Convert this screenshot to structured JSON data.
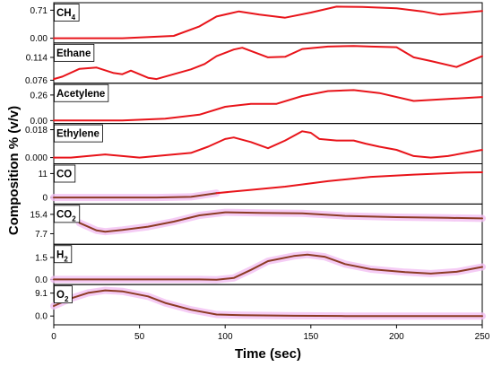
{
  "figure": {
    "ylabel": "Composition % (v/v)",
    "xlabel": "Time (sec)",
    "x_ticks": [
      "0",
      "50",
      "100",
      "150",
      "200",
      "250"
    ]
  },
  "chart_data": {
    "type": "line",
    "xlim": [
      0,
      250
    ],
    "colors": {
      "fresh": "#e8141a",
      "reacted": "#8c3b24",
      "band": "#f2bff2"
    },
    "panels": [
      {
        "id": "ch4",
        "label": "CH",
        "subscript": "4",
        "yticks": [
          "0.71",
          "0.00"
        ],
        "ylim": [
          -0.12,
          0.9
        ],
        "series": [
          {
            "color": "fresh",
            "points": [
              [
                0,
                0.0
              ],
              [
                40,
                0.0
              ],
              [
                70,
                0.06
              ],
              [
                85,
                0.3
              ],
              [
                95,
                0.55
              ],
              [
                108,
                0.68
              ],
              [
                120,
                0.6
              ],
              [
                135,
                0.52
              ],
              [
                150,
                0.65
              ],
              [
                165,
                0.8
              ],
              [
                180,
                0.79
              ],
              [
                200,
                0.76
              ],
              [
                215,
                0.68
              ],
              [
                225,
                0.6
              ],
              [
                240,
                0.65
              ],
              [
                250,
                0.69
              ]
            ]
          }
        ]
      },
      {
        "id": "ethane",
        "label": "Ethane",
        "subscript": "",
        "yticks": [
          "0.114",
          "0.076"
        ],
        "ylim": [
          0.071,
          0.138
        ],
        "series": [
          {
            "color": "fresh",
            "points": [
              [
                0,
                0.078
              ],
              [
                5,
                0.082
              ],
              [
                15,
                0.095
              ],
              [
                25,
                0.097
              ],
              [
                35,
                0.088
              ],
              [
                40,
                0.086
              ],
              [
                45,
                0.092
              ],
              [
                55,
                0.08
              ],
              [
                60,
                0.078
              ],
              [
                70,
                0.086
              ],
              [
                80,
                0.094
              ],
              [
                88,
                0.103
              ],
              [
                95,
                0.116
              ],
              [
                105,
                0.127
              ],
              [
                110,
                0.13
              ],
              [
                125,
                0.114
              ],
              [
                135,
                0.115
              ],
              [
                145,
                0.128
              ],
              [
                160,
                0.132
              ],
              [
                175,
                0.133
              ],
              [
                185,
                0.132
              ],
              [
                200,
                0.131
              ],
              [
                210,
                0.114
              ],
              [
                220,
                0.108
              ],
              [
                235,
                0.098
              ],
              [
                245,
                0.11
              ],
              [
                250,
                0.116
              ]
            ]
          }
        ]
      },
      {
        "id": "acetylene",
        "label": "Acetylene",
        "subscript": "",
        "yticks": [
          "0.26",
          "0.00"
        ],
        "ylim": [
          -0.03,
          0.38
        ],
        "series": [
          {
            "color": "fresh",
            "points": [
              [
                0,
                0.0
              ],
              [
                40,
                0.0
              ],
              [
                65,
                0.02
              ],
              [
                85,
                0.06
              ],
              [
                100,
                0.14
              ],
              [
                115,
                0.17
              ],
              [
                130,
                0.17
              ],
              [
                145,
                0.25
              ],
              [
                160,
                0.3
              ],
              [
                175,
                0.31
              ],
              [
                190,
                0.28
              ],
              [
                210,
                0.2
              ],
              [
                230,
                0.22
              ],
              [
                250,
                0.24
              ]
            ]
          }
        ]
      },
      {
        "id": "ethylene",
        "label": "Ethylene",
        "subscript": "",
        "yticks": [
          "0.018",
          "0.000"
        ],
        "ylim": [
          -0.004,
          0.022
        ],
        "series": [
          {
            "color": "fresh",
            "points": [
              [
                0,
                0.0
              ],
              [
                10,
                0.0
              ],
              [
                20,
                0.001
              ],
              [
                30,
                0.002
              ],
              [
                40,
                0.001
              ],
              [
                50,
                0.0
              ],
              [
                60,
                0.001
              ],
              [
                70,
                0.002
              ],
              [
                80,
                0.003
              ],
              [
                90,
                0.007
              ],
              [
                100,
                0.012
              ],
              [
                105,
                0.013
              ],
              [
                115,
                0.01
              ],
              [
                125,
                0.006
              ],
              [
                135,
                0.011
              ],
              [
                145,
                0.017
              ],
              [
                150,
                0.016
              ],
              [
                155,
                0.012
              ],
              [
                165,
                0.011
              ],
              [
                175,
                0.011
              ],
              [
                182,
                0.009
              ],
              [
                190,
                0.007
              ],
              [
                200,
                0.005
              ],
              [
                210,
                0.001
              ],
              [
                220,
                0.0
              ],
              [
                230,
                0.001
              ],
              [
                240,
                0.003
              ],
              [
                250,
                0.005
              ]
            ]
          }
        ]
      },
      {
        "id": "co",
        "label": "CO",
        "subscript": "",
        "yticks": [
          "11",
          "0"
        ],
        "ylim": [
          -3,
          15.5
        ],
        "series": [
          {
            "color": "reacted",
            "band": true,
            "points": [
              [
                0,
                0.0
              ],
              [
                40,
                0.0
              ],
              [
                60,
                0.0
              ],
              [
                80,
                0.3
              ],
              [
                95,
                2.0
              ]
            ]
          },
          {
            "color": "fresh",
            "points": [
              [
                95,
                2.0
              ],
              [
                115,
                3.5
              ],
              [
                135,
                5.0
              ],
              [
                160,
                7.5
              ],
              [
                185,
                9.5
              ],
              [
                210,
                10.5
              ],
              [
                240,
                11.5
              ],
              [
                250,
                11.6
              ]
            ]
          }
        ]
      },
      {
        "id": "co2",
        "label": "CO",
        "subscript": "2",
        "yticks": [
          "15.4",
          "7.7"
        ],
        "ylim": [
          3.5,
          19.5
        ],
        "series": [
          {
            "color": "reacted",
            "band": true,
            "points": [
              [
                15,
                12.0
              ],
              [
                25,
                9.0
              ],
              [
                30,
                8.5
              ],
              [
                40,
                9.2
              ],
              [
                55,
                10.5
              ],
              [
                70,
                12.5
              ],
              [
                85,
                15.0
              ],
              [
                100,
                16.2
              ],
              [
                120,
                16.0
              ],
              [
                145,
                15.8
              ],
              [
                170,
                14.8
              ],
              [
                200,
                14.3
              ],
              [
                230,
                14.0
              ],
              [
                250,
                13.8
              ]
            ]
          }
        ]
      },
      {
        "id": "h2",
        "label": "H",
        "subscript": "2",
        "yticks": [
          "1.5",
          "0.0"
        ],
        "ylim": [
          -0.35,
          2.4
        ],
        "series": [
          {
            "color": "reacted",
            "band": true,
            "points": [
              [
                0,
                0.0
              ],
              [
                60,
                0.0
              ],
              [
                85,
                0.0
              ],
              [
                95,
                -0.02
              ],
              [
                105,
                0.1
              ],
              [
                115,
                0.65
              ],
              [
                125,
                1.25
              ],
              [
                140,
                1.6
              ],
              [
                148,
                1.7
              ],
              [
                158,
                1.55
              ],
              [
                170,
                1.05
              ],
              [
                185,
                0.7
              ],
              [
                205,
                0.5
              ],
              [
                220,
                0.4
              ],
              [
                235,
                0.52
              ],
              [
                250,
                0.85
              ]
            ]
          }
        ]
      },
      {
        "id": "o2",
        "label": "O",
        "subscript": "2",
        "yticks": [
          "9.1",
          "0.0"
        ],
        "ylim": [
          -3.5,
          12.5
        ],
        "series": [
          {
            "color": "reacted",
            "band": true,
            "points": [
              [
                0,
                4.0
              ],
              [
                10,
                7.0
              ],
              [
                20,
                9.2
              ],
              [
                30,
                10.2
              ],
              [
                40,
                9.8
              ],
              [
                55,
                7.8
              ],
              [
                65,
                5.2
              ],
              [
                80,
                2.5
              ],
              [
                95,
                0.6
              ],
              [
                110,
                0.3
              ],
              [
                140,
                0.1
              ],
              [
                170,
                0.0
              ],
              [
                250,
                0.0
              ]
            ]
          }
        ]
      }
    ]
  }
}
